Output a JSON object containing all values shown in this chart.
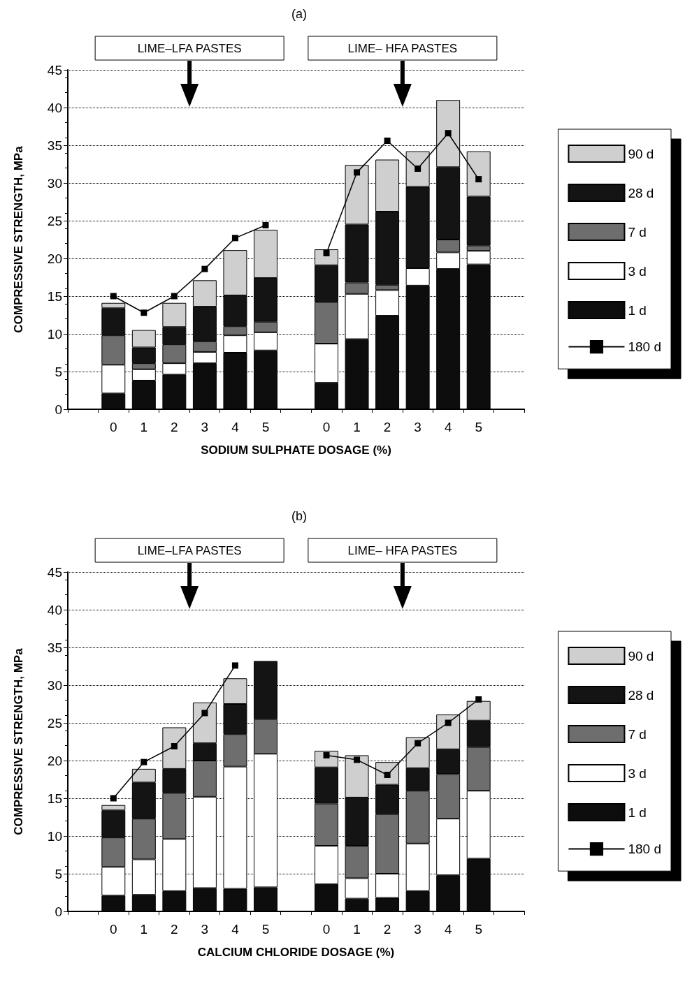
{
  "chart_data": [
    {
      "type": "bar",
      "title": "(a)",
      "xlabel": "SODIUM SULPHATE DOSAGE (%)",
      "ylabel": "COMPRESSIVE STRENGTH, MPa",
      "stacked": true,
      "grid": "y",
      "legend": "right",
      "ylim": [
        0,
        45
      ],
      "yticks": [
        0,
        5,
        10,
        15,
        20,
        25,
        30,
        35,
        40,
        45
      ],
      "annotations": [
        "LIME–LFA PASTES",
        "LIME– HFA PASTES"
      ],
      "categories": [
        null,
        "0",
        "1",
        "2",
        "3",
        "4",
        "5",
        null,
        "0",
        "1",
        "2",
        "3",
        "4",
        "5",
        null
      ],
      "series": [
        {
          "name": "1 d",
          "color": "#0d0d0d",
          "values": [
            null,
            2.1,
            3.8,
            4.6,
            6.1,
            7.5,
            7.8,
            null,
            3.5,
            9.3,
            12.4,
            16.4,
            18.6,
            19.2,
            null
          ]
        },
        {
          "name": "3 d",
          "color": "#ffffff",
          "values": [
            null,
            3.8,
            1.5,
            1.5,
            1.5,
            2.3,
            2.4,
            null,
            5.2,
            6.0,
            3.4,
            2.3,
            2.2,
            1.8,
            null
          ]
        },
        {
          "name": "7 d",
          "color": "#6e6e6e",
          "values": [
            null,
            3.9,
            0.8,
            2.5,
            1.4,
            1.2,
            1.4,
            null,
            5.5,
            1.5,
            0.7,
            null,
            1.7,
            0.7,
            null
          ]
        },
        {
          "name": "28 d",
          "color": "#141414",
          "values": [
            null,
            3.6,
            2.1,
            2.3,
            4.6,
            4.1,
            5.8,
            null,
            4.9,
            7.7,
            9.7,
            10.8,
            9.6,
            6.5,
            null
          ]
        },
        {
          "name": "90 d",
          "color": "#cfcfcf",
          "values": [
            null,
            0.7,
            2.3,
            3.2,
            3.5,
            6.0,
            6.4,
            null,
            2.1,
            7.9,
            6.9,
            4.7,
            8.9,
            6.0,
            null
          ]
        },
        {
          "name": "180 d",
          "type": "line",
          "color": "#000000",
          "marker": "square",
          "line_style": "solid",
          "values": [
            null,
            15.0,
            12.8,
            15.0,
            18.6,
            22.7,
            24.4,
            null,
            20.7,
            31.4,
            35.6,
            31.9,
            36.6,
            30.5,
            null
          ]
        }
      ]
    },
    {
      "type": "bar",
      "title": "(b)",
      "xlabel": "CALCIUM CHLORIDE DOSAGE (%)",
      "ylabel": "COMPRESSIVE STRENGTH, MPa",
      "stacked": true,
      "grid": "y",
      "legend": "right",
      "ylim": [
        0,
        45
      ],
      "yticks": [
        0,
        5,
        10,
        15,
        20,
        25,
        30,
        35,
        40,
        45
      ],
      "annotations": [
        "LIME–LFA PASTES",
        "LIME– HFA PASTES"
      ],
      "categories": [
        null,
        "0",
        "1",
        "2",
        "3",
        "4",
        "5",
        null,
        "0",
        "1",
        "2",
        "3",
        "4",
        "5",
        null
      ],
      "series": [
        {
          "name": "1 d",
          "color": "#0d0d0d",
          "values": [
            null,
            2.1,
            2.2,
            2.7,
            3.1,
            3.0,
            3.2,
            null,
            3.6,
            1.7,
            1.8,
            2.7,
            4.8,
            7.0,
            null
          ]
        },
        {
          "name": "3 d",
          "color": "#ffffff",
          "values": [
            null,
            3.8,
            4.7,
            6.9,
            12.1,
            16.2,
            17.7,
            null,
            5.1,
            2.7,
            3.2,
            6.3,
            7.5,
            9.0,
            null
          ]
        },
        {
          "name": "7 d",
          "color": "#6e6e6e",
          "values": [
            null,
            3.9,
            5.4,
            6.1,
            4.8,
            4.3,
            4.6,
            null,
            5.6,
            4.3,
            7.9,
            7.0,
            5.9,
            5.8,
            null
          ]
        },
        {
          "name": "28 d",
          "color": "#141414",
          "values": [
            null,
            3.6,
            4.8,
            3.2,
            2.3,
            4.0,
            7.7,
            null,
            4.8,
            6.4,
            3.9,
            3.0,
            3.3,
            3.5,
            null
          ]
        },
        {
          "name": "90 d",
          "color": "#cfcfcf",
          "values": [
            null,
            0.7,
            1.8,
            5.5,
            5.4,
            3.4,
            null,
            null,
            2.2,
            5.6,
            3.0,
            4.1,
            4.6,
            2.6,
            null
          ]
        },
        {
          "name": "180 d",
          "type": "line",
          "color": "#000000",
          "marker": "square",
          "line_style": "solid",
          "values": [
            null,
            15.0,
            19.8,
            21.9,
            26.3,
            32.6,
            null,
            null,
            20.7,
            20.1,
            18.1,
            22.3,
            25.0,
            28.1,
            null
          ]
        }
      ]
    }
  ]
}
